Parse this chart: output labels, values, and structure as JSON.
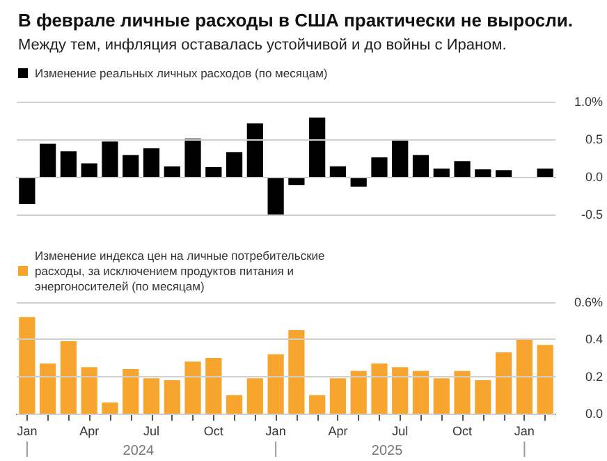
{
  "chart_data": [
    {
      "type": "bar",
      "title": "В феврале личные расходы в США практически не выросли.",
      "subtitle": "Между тем, инфляция оставалась устойчивой и до войны с Ираном.",
      "categories": [
        null,
        null,
        null,
        null,
        null,
        null,
        null,
        null,
        null,
        null,
        null,
        null,
        null,
        null,
        null,
        null,
        null,
        null,
        null,
        null,
        null,
        null,
        null,
        null,
        null,
        null
      ],
      "series": [
        {
          "name": "Изменение реальных личных расходов (по месяцам)",
          "color": "#000000",
          "values": [
            -0.36,
            0.44,
            0.34,
            0.18,
            0.47,
            0.29,
            0.38,
            0.14,
            0.51,
            0.13,
            0.33,
            0.71,
            -0.5,
            -0.11,
            0.79,
            0.14,
            -0.13,
            0.26,
            0.5,
            0.29,
            0.11,
            0.21,
            0.1,
            0.09,
            0.0,
            0.11
          ]
        }
      ],
      "ylim": [
        -0.5,
        1.0
      ],
      "yticks": [
        {
          "value": -0.5,
          "label": "-0.5"
        },
        {
          "value": 0,
          "label": "0.0"
        },
        {
          "value": 0.5,
          "label": "0.5"
        },
        {
          "value": 1.0,
          "label": "1.0%"
        }
      ],
      "grid": "y",
      "legend": "top left",
      "tick_labels": "y"
    },
    {
      "type": "bar",
      "categories": [
        "Jan",
        null,
        null,
        "Apr",
        null,
        null,
        "Jul",
        null,
        null,
        "Oct",
        null,
        null,
        "Jan",
        null,
        null,
        "Apr",
        null,
        null,
        "Jul",
        null,
        null,
        "Oct",
        null,
        null,
        "Jan",
        null
      ],
      "series": [
        {
          "name": "Изменение индекса цен на личные потребительские расходы, за исключением продуктов питания и энергоносителей (по месяцам)",
          "color": "#f7a52e",
          "values": [
            0.52,
            0.27,
            0.39,
            0.25,
            0.06,
            0.24,
            0.19,
            0.18,
            0.28,
            0.3,
            0.1,
            0.19,
            0.32,
            0.45,
            0.1,
            0.19,
            0.23,
            0.27,
            0.25,
            0.23,
            0.19,
            0.23,
            0.18,
            0.33,
            0.4,
            0.37
          ]
        }
      ],
      "ylim": [
        0,
        0.6
      ],
      "yticks": [
        {
          "value": 0,
          "label": "0.0"
        },
        {
          "value": 0.2,
          "label": "0.2"
        },
        {
          "value": 0.4,
          "label": "0.4"
        },
        {
          "value": 0.6,
          "label": "0.6%"
        }
      ],
      "grid": "y",
      "legend": "top left",
      "annotations": [
        "2024",
        "2025"
      ]
    }
  ]
}
